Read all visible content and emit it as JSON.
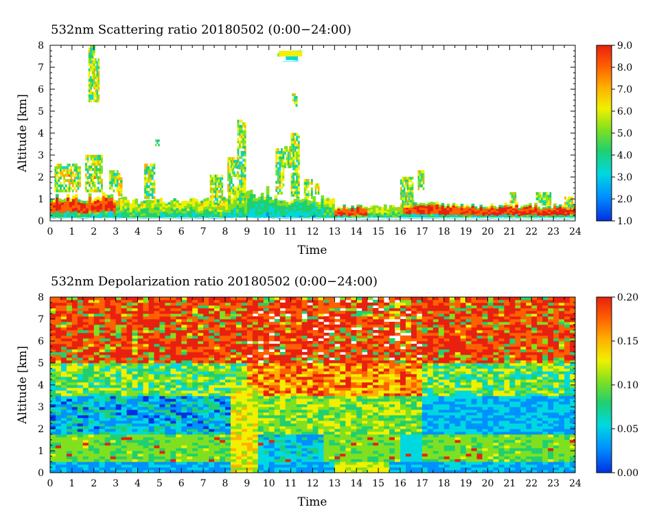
{
  "chart_data": [
    {
      "type": "heatmap",
      "title": "532nm Scattering ratio  20180502 (0:00−24:00)",
      "xlabel": "Time",
      "ylabel": "Altitude [km]",
      "xlim": [
        0,
        24
      ],
      "ylim": [
        0,
        8
      ],
      "x_ticks": [
        "0",
        "1",
        "2",
        "3",
        "4",
        "5",
        "6",
        "7",
        "8",
        "9",
        "10",
        "11",
        "12",
        "13",
        "14",
        "15",
        "16",
        "17",
        "18",
        "19",
        "20",
        "21",
        "22",
        "23",
        "24"
      ],
      "y_ticks": [
        "0",
        "1",
        "2",
        "3",
        "4",
        "5",
        "6",
        "7",
        "8"
      ],
      "colorbar": {
        "range": [
          1.0,
          9.0
        ],
        "ticks": [
          "1.0",
          "2.0",
          "3.0",
          "4.0",
          "5.0",
          "6.0",
          "7.0",
          "8.0",
          "9.0"
        ]
      },
      "grid": false
    },
    {
      "type": "heatmap",
      "title": "532nm Depolarization ratio  20180502 (0:00−24:00)",
      "xlabel": "Time",
      "ylabel": "Altitude [km]",
      "xlim": [
        0,
        24
      ],
      "ylim": [
        0,
        8
      ],
      "x_ticks": [
        "0",
        "1",
        "2",
        "3",
        "4",
        "5",
        "6",
        "7",
        "8",
        "9",
        "10",
        "11",
        "12",
        "13",
        "14",
        "15",
        "16",
        "17",
        "18",
        "19",
        "20",
        "21",
        "22",
        "23",
        "24"
      ],
      "y_ticks": [
        "0",
        "1",
        "2",
        "3",
        "4",
        "5",
        "6",
        "7",
        "8"
      ],
      "colorbar": {
        "range": [
          0.0,
          0.2
        ],
        "ticks": [
          "0.00",
          "0.05",
          "0.10",
          "0.15",
          "0.20"
        ]
      },
      "grid": false
    }
  ],
  "palette": [
    "#0030e0",
    "#0090ff",
    "#00d8e0",
    "#20d070",
    "#80e020",
    "#f0f000",
    "#ffb000",
    "#ff6000",
    "#e82010"
  ]
}
